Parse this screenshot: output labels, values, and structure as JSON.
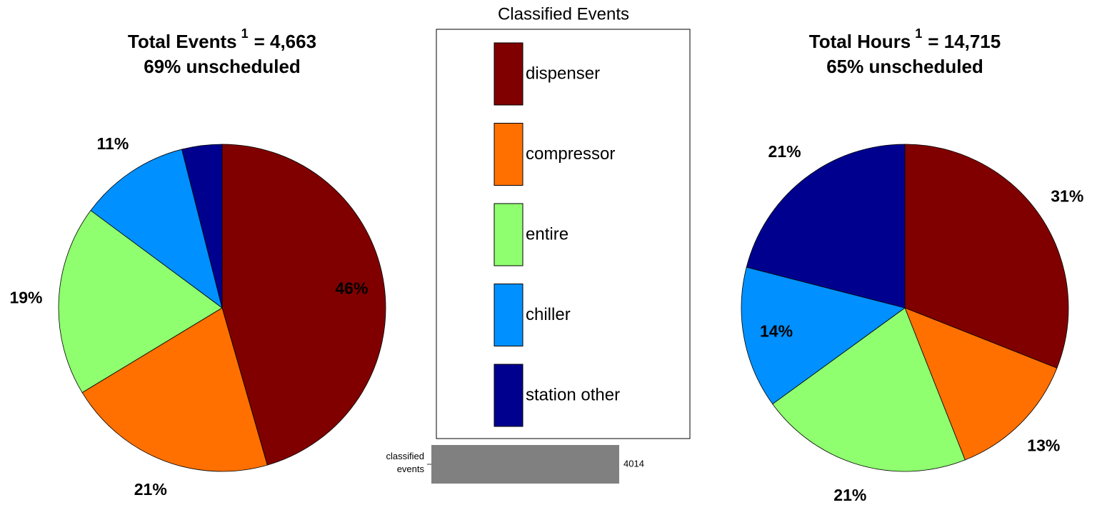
{
  "legend_title": "Classified Events",
  "chart_data": [
    {
      "type": "pie",
      "title": "Total Events",
      "title_superscript": "1",
      "title_suffix": "= 4,663",
      "subtitle": "69% unscheduled",
      "categories": [
        "dispenser",
        "compressor",
        "entire",
        "chiller",
        "station other"
      ],
      "values": [
        46,
        21,
        19,
        11,
        4
      ],
      "value_labels": [
        "46%",
        "21%",
        "19%",
        "11%",
        null
      ],
      "colors": [
        "#800000",
        "#ff7000",
        "#8fff6f",
        "#0090ff",
        "#00008f"
      ]
    },
    {
      "type": "pie",
      "title": "Total Hours",
      "title_superscript": "1",
      "title_suffix": "= 14,715",
      "subtitle": "65% unscheduled",
      "categories": [
        "dispenser",
        "compressor",
        "entire",
        "chiller",
        "station other"
      ],
      "values": [
        31,
        13,
        21,
        14,
        21
      ],
      "value_labels": [
        "31%",
        "13%",
        "21%",
        "14%",
        "21%"
      ],
      "colors": [
        "#800000",
        "#ff7000",
        "#8fff6f",
        "#0090ff",
        "#00008f"
      ]
    },
    {
      "type": "bar",
      "orientation": "horizontal",
      "categories": [
        "classified events"
      ],
      "values": [
        4014
      ],
      "color": "#808080",
      "xlim": [
        0,
        4014
      ]
    }
  ]
}
